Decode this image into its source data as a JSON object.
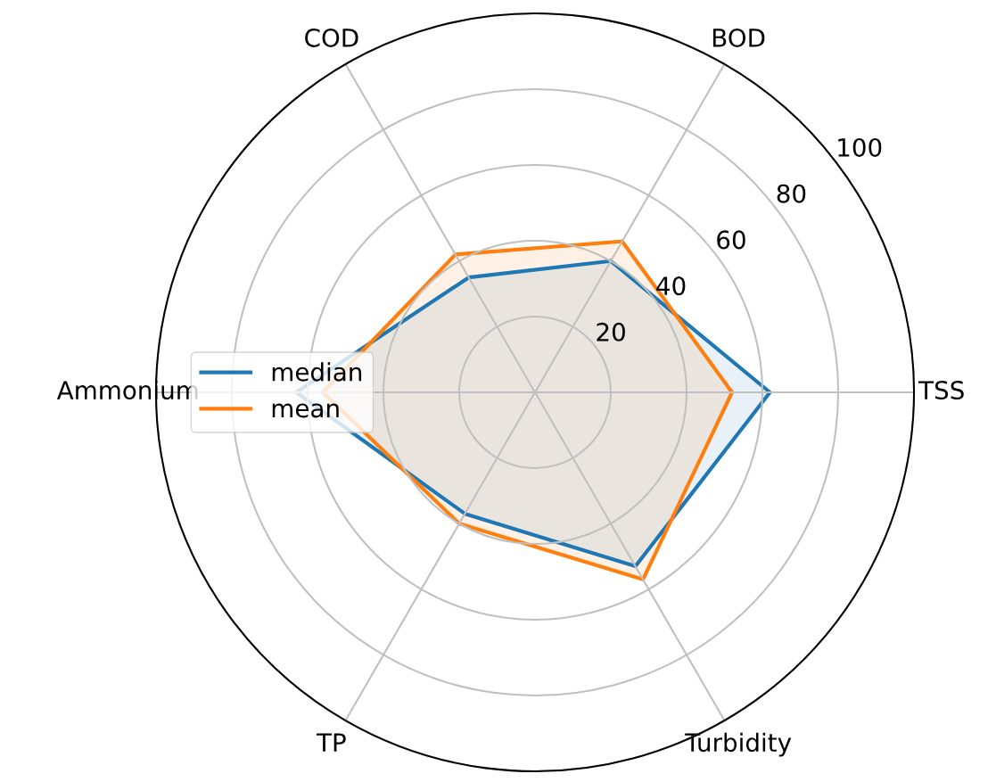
{
  "chart_data": {
    "type": "radar",
    "categories": [
      "BOD",
      "TSS",
      "Turbidity",
      "TP",
      "Ammonium",
      "COD"
    ],
    "series": [
      {
        "name": "median",
        "color": "#1f77b4",
        "values": [
          40,
          62,
          53,
          37,
          63,
          35
        ]
      },
      {
        "name": "mean",
        "color": "#ff7f0e",
        "values": [
          46,
          52,
          57,
          40,
          56,
          42
        ]
      }
    ],
    "ylim": [
      0,
      100
    ],
    "yticks": [
      20,
      40,
      60,
      80,
      100
    ],
    "grid": true,
    "legend": "left",
    "marker": "none",
    "line_style": "solid"
  }
}
